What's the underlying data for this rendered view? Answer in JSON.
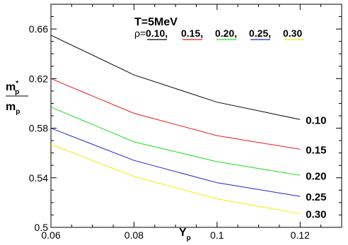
{
  "chart_data": {
    "type": "line",
    "title": "T=5MeV",
    "legend_prefix": "ρ=",
    "x": [
      0.06,
      0.08,
      0.1,
      0.12
    ],
    "xlim": [
      0.06,
      0.13
    ],
    "ylim": [
      0.5,
      0.68
    ],
    "xticks": [
      0.06,
      0.08,
      0.1,
      0.12
    ],
    "xtick_labels": [
      "0.06",
      "0.08",
      "0.1",
      "0.12"
    ],
    "yticks": [
      0.5,
      0.54,
      0.58,
      0.62,
      0.66
    ],
    "ytick_labels": [
      "0.5",
      "0.54",
      "0.58",
      "0.62",
      "0.66"
    ],
    "xlabel": {
      "base": "Y",
      "sub": "p"
    },
    "ylabel": {
      "num_base": "m",
      "num_sup": "*",
      "num_sub": "p",
      "den_base": "m",
      "den_sub": "p"
    },
    "series": [
      {
        "name": "0.10",
        "legend_label": "0.10,",
        "color": "#000000",
        "values": [
          0.655,
          0.623,
          0.601,
          0.587
        ]
      },
      {
        "name": "0.15",
        "legend_label": "0.15,",
        "color": "#e41a1c",
        "values": [
          0.62,
          0.592,
          0.574,
          0.563
        ]
      },
      {
        "name": "0.20",
        "legend_label": "0.20,",
        "color": "#22dd22",
        "values": [
          0.597,
          0.569,
          0.553,
          0.542
        ]
      },
      {
        "name": "0.25",
        "legend_label": "0.25,",
        "color": "#2222cc",
        "values": [
          0.58,
          0.554,
          0.536,
          0.525
        ]
      },
      {
        "name": "0.30",
        "legend_label": "0.30",
        "color": "#eeee00",
        "values": [
          0.567,
          0.541,
          0.523,
          0.511
        ]
      }
    ]
  }
}
